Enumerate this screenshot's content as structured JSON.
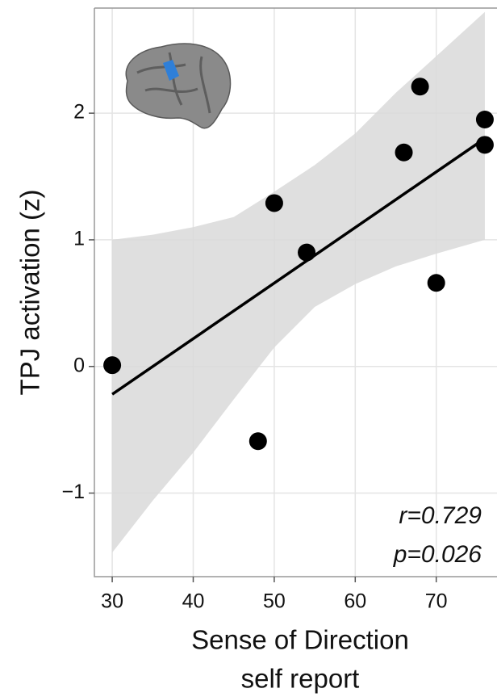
{
  "chart_data": {
    "type": "scatter",
    "ylabel": "TPJ activation (z)",
    "xlabel": [
      "Sense of Direction",
      "self report"
    ],
    "annotations": [
      "r=0.729",
      "p=0.026"
    ],
    "xlim": [
      27.8,
      77.5
    ],
    "ylim": [
      -1.66,
      2.83
    ],
    "xticks": [
      30,
      40,
      50,
      60,
      70
    ],
    "yticks": [
      {
        "value": -1,
        "label": "−1"
      },
      0,
      1,
      2
    ],
    "grid": true,
    "series": [
      {
        "color": "#000000",
        "x": [
          30,
          48,
          50,
          54,
          66,
          68,
          70,
          76,
          76
        ],
        "values": [
          0.01,
          -0.59,
          1.29,
          0.9,
          1.69,
          2.21,
          0.66,
          1.95,
          1.75
        ]
      }
    ],
    "fit": {
      "color": "#000000",
      "x": [
        30,
        76
      ],
      "values": [
        -0.22,
        1.8
      ]
    },
    "band": {
      "color": "#d9d9d9",
      "x": [
        30,
        35,
        40,
        45,
        50,
        55,
        60,
        65,
        70,
        76
      ],
      "upper": [
        1.0,
        1.04,
        1.1,
        1.18,
        1.38,
        1.59,
        1.84,
        2.16,
        2.45,
        2.8
      ],
      "lower": [
        -1.47,
        -1.06,
        -0.68,
        -0.26,
        0.15,
        0.47,
        0.65,
        0.79,
        0.89,
        1.0
      ]
    }
  }
}
